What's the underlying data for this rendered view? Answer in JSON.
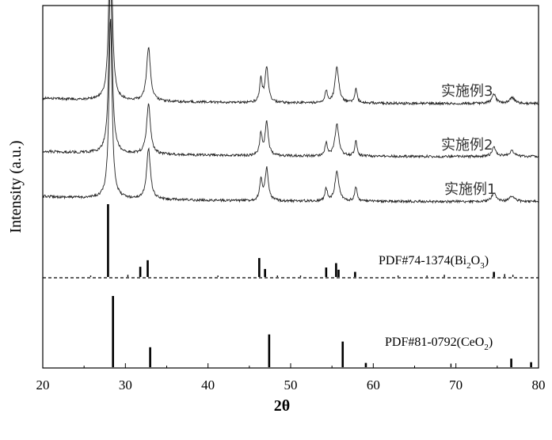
{
  "chart_data": {
    "type": "line",
    "xlabel": "2θ",
    "ylabel": "Intensity (a.u.)",
    "xlim": [
      20,
      80
    ],
    "x_ticks": [
      20,
      30,
      40,
      50,
      60,
      70,
      80
    ],
    "x_tick_labels": [
      "20",
      "30",
      "40",
      "50",
      "60",
      "70",
      "80"
    ],
    "grid": false,
    "series": [
      {
        "name": "实施例1",
        "peaks": [
          [
            28.2,
            1.0,
            0.45
          ],
          [
            32.8,
            0.28,
            0.55
          ],
          [
            46.4,
            0.12,
            0.35
          ],
          [
            47.1,
            0.18,
            0.45
          ],
          [
            54.3,
            0.07,
            0.35
          ],
          [
            55.6,
            0.17,
            0.55
          ],
          [
            57.9,
            0.08,
            0.35
          ],
          [
            74.6,
            0.05,
            0.6
          ],
          [
            76.8,
            0.03,
            0.8
          ]
        ]
      },
      {
        "name": "实施例2",
        "peaks": [
          [
            28.2,
            1.03,
            0.45
          ],
          [
            32.8,
            0.28,
            0.55
          ],
          [
            46.4,
            0.12,
            0.35
          ],
          [
            47.1,
            0.19,
            0.45
          ],
          [
            54.3,
            0.07,
            0.35
          ],
          [
            55.6,
            0.18,
            0.55
          ],
          [
            57.9,
            0.08,
            0.35
          ],
          [
            74.6,
            0.05,
            0.6
          ],
          [
            76.8,
            0.03,
            0.8
          ]
        ]
      },
      {
        "name": "实施例3",
        "peaks": [
          [
            28.2,
            1.06,
            0.45
          ],
          [
            32.8,
            0.3,
            0.55
          ],
          [
            46.4,
            0.13,
            0.35
          ],
          [
            47.1,
            0.2,
            0.45
          ],
          [
            54.3,
            0.07,
            0.35
          ],
          [
            55.6,
            0.2,
            0.55
          ],
          [
            57.9,
            0.08,
            0.35
          ],
          [
            74.6,
            0.05,
            0.6
          ],
          [
            76.8,
            0.03,
            0.8
          ]
        ]
      }
    ],
    "reference_patterns": [
      {
        "name": "PDF#74-1374(Bi2O3)",
        "label_main": "PDF#74-1374(Bi",
        "label_sub1": "2",
        "label_mid": "O",
        "label_sub2": "3",
        "label_end": ")",
        "lines": [
          [
            25.8,
            0.02
          ],
          [
            27.9,
            1.0
          ],
          [
            30.3,
            0.03
          ],
          [
            31.8,
            0.14
          ],
          [
            32.7,
            0.23
          ],
          [
            41.2,
            0.02
          ],
          [
            46.2,
            0.26
          ],
          [
            46.9,
            0.11
          ],
          [
            48.4,
            0.02
          ],
          [
            51.2,
            0.02
          ],
          [
            54.3,
            0.13
          ],
          [
            55.5,
            0.19
          ],
          [
            55.8,
            0.1
          ],
          [
            57.8,
            0.07
          ],
          [
            63.0,
            0.02
          ],
          [
            66.5,
            0.02
          ],
          [
            68.6,
            0.03
          ],
          [
            74.6,
            0.07
          ],
          [
            75.9,
            0.04
          ],
          [
            76.9,
            0.03
          ]
        ]
      },
      {
        "name": "PDF#81-0792(CeO2)",
        "label_main": "PDF#81-0792(CeO",
        "label_sub1": "2",
        "label_end": ")",
        "lines": [
          [
            28.5,
            1.0
          ],
          [
            33.0,
            0.28
          ],
          [
            47.4,
            0.46
          ],
          [
            56.3,
            0.36
          ],
          [
            59.1,
            0.06
          ],
          [
            69.4,
            0.05
          ],
          [
            76.7,
            0.12
          ],
          [
            79.1,
            0.07
          ]
        ]
      }
    ]
  }
}
